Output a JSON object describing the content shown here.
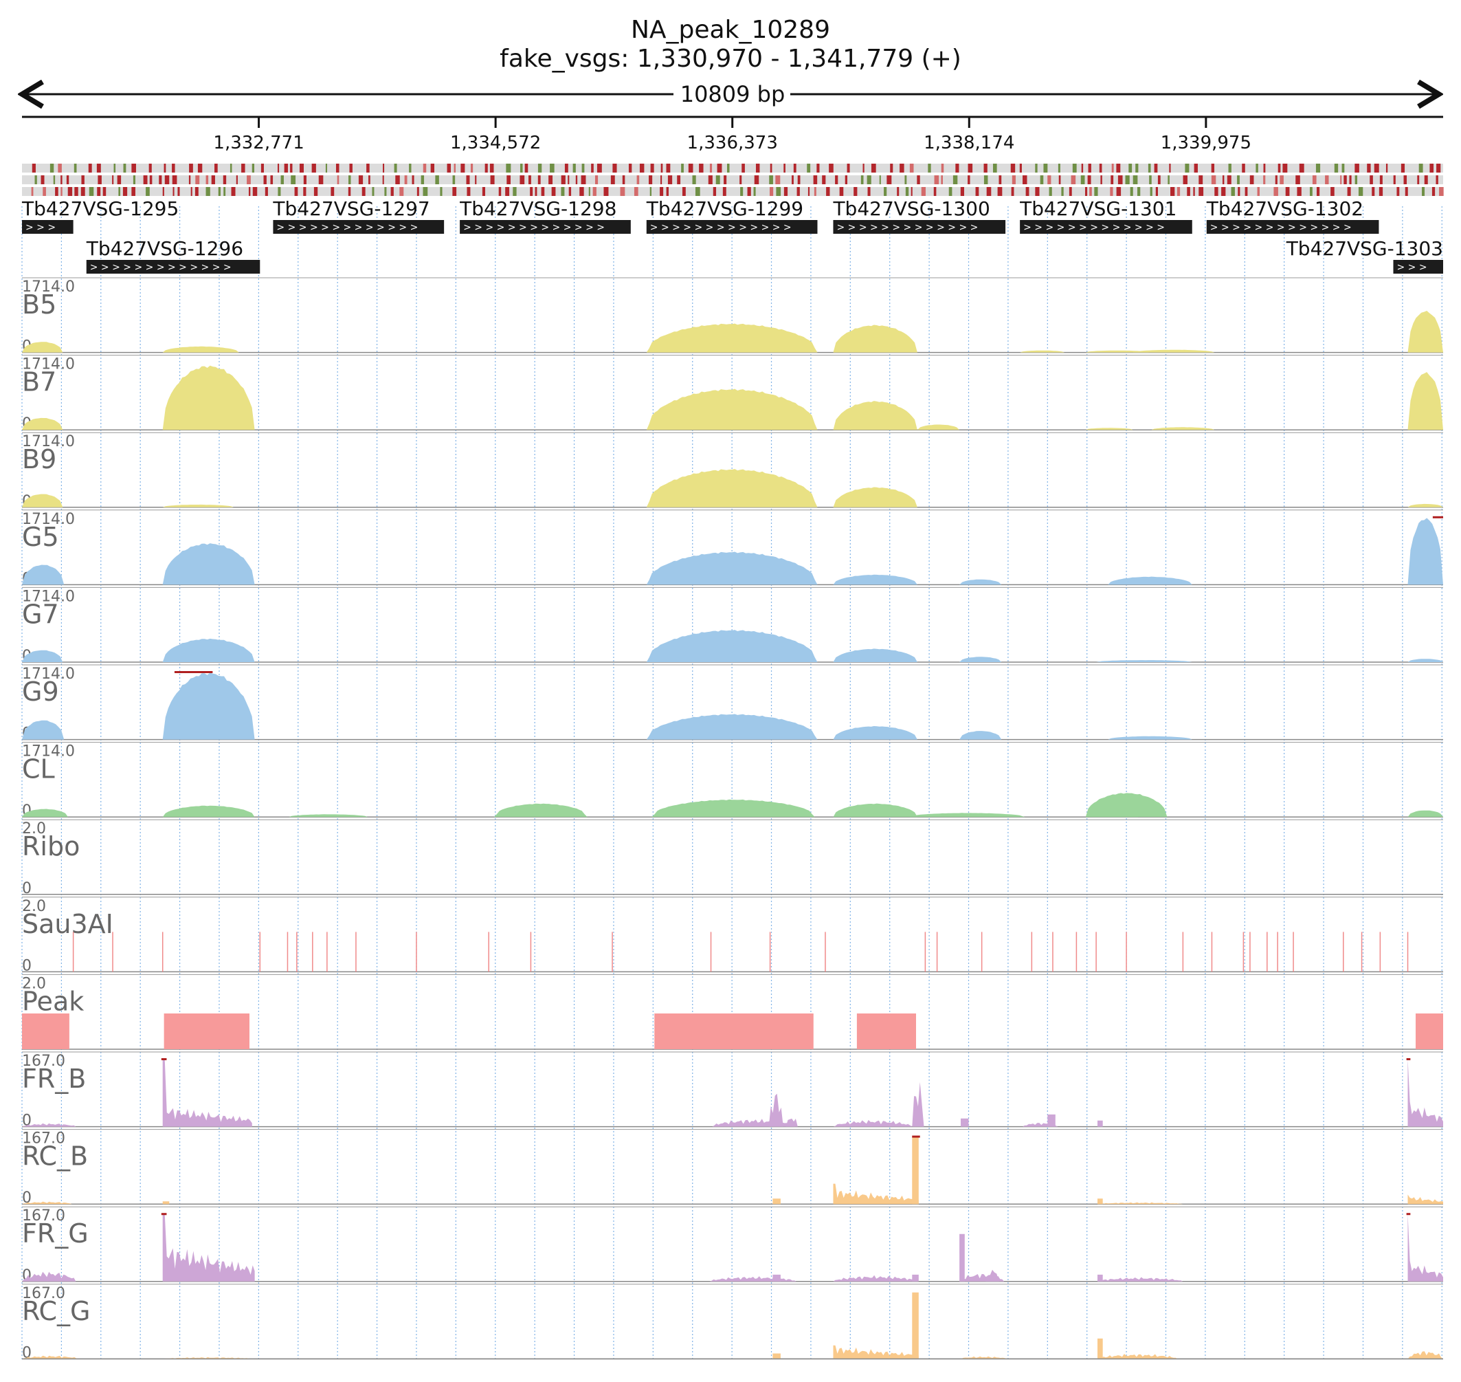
{
  "header": {
    "title": "NA_peak_10289",
    "subtitle": "fake_vsgs: 1,330,970 - 1,341,779 (+)",
    "span_label": "10809 bp"
  },
  "colors": {
    "yellow": "#e9e184",
    "blue": "#9fc8e9",
    "green": "#9bd59a",
    "pink": "#f79a9a",
    "purple": "#cda6d6",
    "orange": "#f9c98a",
    "gene_bar": "#1c1c1c",
    "grid": "#7fb2e6",
    "max_marker": "#b02020"
  },
  "chart_data": {
    "type": "area",
    "x_range": [
      1330970,
      1341779
    ],
    "x_ticks": [
      {
        "value": 1332771,
        "label": "1,332,771"
      },
      {
        "value": 1334572,
        "label": "1,334,572"
      },
      {
        "value": 1336373,
        "label": "1,336,373"
      },
      {
        "value": 1338174,
        "label": "1,338,174"
      },
      {
        "value": 1339975,
        "label": "1,339,975"
      }
    ],
    "sequence_tracks": 3,
    "genes": [
      {
        "name": "Tb427VSG-1295",
        "start": 1330970,
        "end": 1331360,
        "row": 0
      },
      {
        "name": "Tb427VSG-1296",
        "start": 1331460,
        "end": 1332780,
        "row": 1
      },
      {
        "name": "Tb427VSG-1297",
        "start": 1332880,
        "end": 1334180,
        "row": 0
      },
      {
        "name": "Tb427VSG-1298",
        "start": 1334300,
        "end": 1335600,
        "row": 0
      },
      {
        "name": "Tb427VSG-1299",
        "start": 1335720,
        "end": 1337020,
        "row": 0
      },
      {
        "name": "Tb427VSG-1300",
        "start": 1337140,
        "end": 1338450,
        "row": 0
      },
      {
        "name": "Tb427VSG-1301",
        "start": 1338560,
        "end": 1339870,
        "row": 0
      },
      {
        "name": "Tb427VSG-1302",
        "start": 1339980,
        "end": 1341290,
        "row": 0
      },
      {
        "name": "Tb427VSG-1303",
        "start": 1341400,
        "end": 1341779,
        "row": 1
      }
    ],
    "tracks": [
      {
        "name": "B5",
        "ymax": "1714.0",
        "ymin": "0",
        "color": "yellow",
        "kind": "area",
        "peaks": [
          [
            1330970,
            1331280,
            0.16
          ],
          [
            1332040,
            1332620,
            0.09
          ],
          [
            1335720,
            1337020,
            0.43
          ],
          [
            1337140,
            1337780,
            0.41
          ],
          [
            1338560,
            1338900,
            0.03
          ],
          [
            1339060,
            1339540,
            0.03
          ],
          [
            1339420,
            1340040,
            0.04
          ],
          [
            1341510,
            1341779,
            0.62
          ]
        ]
      },
      {
        "name": "B7",
        "ymax": "1714.0",
        "ymin": "0",
        "color": "yellow",
        "kind": "area",
        "peaks": [
          [
            1330970,
            1331280,
            0.18
          ],
          [
            1332040,
            1332740,
            0.96
          ],
          [
            1335720,
            1337020,
            0.61
          ],
          [
            1337140,
            1337780,
            0.43
          ],
          [
            1337780,
            1338100,
            0.08
          ],
          [
            1339060,
            1339420,
            0.03
          ],
          [
            1339560,
            1340040,
            0.04
          ],
          [
            1341510,
            1341779,
            0.86
          ]
        ]
      },
      {
        "name": "B9",
        "ymax": "1714.0",
        "ymin": "0",
        "color": "yellow",
        "kind": "area",
        "peaks": [
          [
            1330970,
            1331280,
            0.2
          ],
          [
            1332040,
            1332580,
            0.04
          ],
          [
            1335720,
            1337020,
            0.57
          ],
          [
            1337140,
            1337780,
            0.3
          ],
          [
            1341510,
            1341779,
            0.05
          ]
        ]
      },
      {
        "name": "G5",
        "ymax": "1714.0",
        "ymin": "0",
        "color": "blue",
        "kind": "area",
        "clipped": [
          [
            1341700,
            1341779
          ]
        ],
        "peaks": [
          [
            1330970,
            1331290,
            0.3
          ],
          [
            1332040,
            1332740,
            0.62
          ],
          [
            1335720,
            1337020,
            0.49
          ],
          [
            1337140,
            1337780,
            0.15
          ],
          [
            1338100,
            1338420,
            0.08
          ],
          [
            1339230,
            1339870,
            0.12
          ],
          [
            1341510,
            1341779,
            1.0
          ]
        ]
      },
      {
        "name": "G7",
        "ymax": "1714.0",
        "ymin": "0",
        "color": "blue",
        "kind": "area",
        "peaks": [
          [
            1330970,
            1331280,
            0.18
          ],
          [
            1332040,
            1332740,
            0.35
          ],
          [
            1335720,
            1337020,
            0.48
          ],
          [
            1337140,
            1337780,
            0.2
          ],
          [
            1338100,
            1338420,
            0.08
          ],
          [
            1339140,
            1339870,
            0.03
          ],
          [
            1341510,
            1341779,
            0.05
          ]
        ]
      },
      {
        "name": "G9",
        "ymax": "1714.0",
        "ymin": "0",
        "color": "blue",
        "kind": "area",
        "clipped": [
          [
            1332130,
            1332420
          ]
        ],
        "peaks": [
          [
            1330970,
            1331290,
            0.29
          ],
          [
            1332040,
            1332740,
            1.0
          ],
          [
            1335720,
            1337020,
            0.38
          ],
          [
            1337140,
            1337780,
            0.2
          ],
          [
            1338100,
            1338420,
            0.13
          ],
          [
            1339230,
            1339870,
            0.05
          ]
        ]
      },
      {
        "name": "CL",
        "ymax": "1714.0",
        "ymin": "0",
        "color": "green",
        "kind": "area",
        "peaks": [
          [
            1330970,
            1331320,
            0.12
          ],
          [
            1332040,
            1332740,
            0.17
          ],
          [
            1333000,
            1333600,
            0.04
          ],
          [
            1334560,
            1335270,
            0.2
          ],
          [
            1335760,
            1337000,
            0.26
          ],
          [
            1337140,
            1337780,
            0.2
          ],
          [
            1337720,
            1338600,
            0.06
          ],
          [
            1339060,
            1339460,
            0.04
          ],
          [
            1339060,
            1339680,
            0.36
          ],
          [
            1341510,
            1341779,
            0.1
          ]
        ]
      },
      {
        "name": "Ribo",
        "ymax": "2.0",
        "ymin": "0",
        "color": "pink",
        "kind": "empty",
        "peaks": []
      },
      {
        "name": "Sau3AI",
        "ymax": "2.0",
        "ymin": "0",
        "color": "pink",
        "kind": "sites",
        "sites": [
          1331360,
          1331660,
          1332040,
          1332780,
          1332990,
          1333060,
          1333180,
          1333290,
          1333510,
          1333970,
          1334520,
          1334840,
          1335460,
          1336210,
          1336660,
          1337080,
          1337840,
          1337930,
          1338270,
          1338650,
          1338810,
          1338990,
          1339140,
          1339370,
          1339800,
          1340020,
          1340260,
          1340310,
          1340440,
          1340520,
          1340640,
          1341020,
          1341160,
          1341300,
          1341510
        ]
      },
      {
        "name": "Peak",
        "ymax": "2.0",
        "ymin": "0",
        "color": "pink",
        "kind": "blocks",
        "blocks": [
          [
            1330970,
            1331330
          ],
          [
            1332050,
            1332700
          ],
          [
            1335780,
            1336990
          ],
          [
            1337320,
            1337770
          ],
          [
            1341570,
            1341779
          ]
        ]
      },
      {
        "name": "FR_B",
        "ymax": "167.0",
        "ymin": "0",
        "color": "purple",
        "kind": "spiky",
        "clipped": [
          [
            1332030,
            1332070
          ],
          [
            1341500,
            1341530
          ]
        ],
        "spikes": [
          [
            1330970,
            1331380,
            0.04,
            0
          ],
          [
            1332040,
            1332720,
            0.25,
            1.0
          ],
          [
            1336220,
            1336850,
            0.09,
            0.0
          ],
          [
            1336650,
            1336760,
            0.43,
            0.43
          ],
          [
            1336780,
            1336870,
            0.13,
            0.13
          ],
          [
            1337140,
            1337740,
            0.08,
            0.0
          ],
          [
            1337740,
            1337830,
            0.55,
            0.55
          ],
          [
            1338110,
            1338170,
            0.12,
            0.12
          ],
          [
            1338580,
            1338850,
            0.05,
            0.0
          ],
          [
            1338770,
            1338830,
            0.18,
            0.18
          ],
          [
            1339150,
            1339190,
            0.09,
            0.09
          ],
          [
            1341510,
            1341779,
            0.3,
            1.0
          ]
        ]
      },
      {
        "name": "RC_B",
        "ymax": "167.0",
        "ymin": "0",
        "color": "orange",
        "kind": "spiky",
        "clipped": [
          [
            1337740,
            1337800
          ]
        ],
        "spikes": [
          [
            1330970,
            1331350,
            0.03,
            0
          ],
          [
            1332040,
            1332090,
            0.04,
            0.04
          ],
          [
            1336680,
            1336740,
            0.08,
            0.08
          ],
          [
            1337140,
            1337790,
            0.18,
            0.3
          ],
          [
            1337740,
            1337790,
            1.0,
            1.0
          ],
          [
            1339150,
            1339190,
            0.08,
            0.08
          ],
          [
            1339150,
            1339800,
            0.02,
            0
          ],
          [
            1341510,
            1341779,
            0.1,
            0.14
          ]
        ]
      },
      {
        "name": "FR_G",
        "ymax": "167.0",
        "ymin": "0",
        "color": "purple",
        "kind": "spiky",
        "clipped": [
          [
            1332030,
            1332070
          ],
          [
            1341500,
            1341530
          ]
        ],
        "spikes": [
          [
            1330970,
            1331380,
            0.12,
            0
          ],
          [
            1332040,
            1332740,
            0.45,
            1.0
          ],
          [
            1336200,
            1336860,
            0.06,
            0
          ],
          [
            1336680,
            1336740,
            0.1,
            0.1
          ],
          [
            1337140,
            1337780,
            0.07,
            0
          ],
          [
            1337740,
            1337790,
            0.1,
            0.1
          ],
          [
            1338100,
            1338440,
            0.1,
            0
          ],
          [
            1338100,
            1338140,
            0.7,
            0.7
          ],
          [
            1338300,
            1338400,
            0.16,
            0.16
          ],
          [
            1339150,
            1339190,
            0.1,
            0.1
          ],
          [
            1339150,
            1339800,
            0.05,
            0
          ],
          [
            1341510,
            1341779,
            0.25,
            1.0
          ]
        ]
      },
      {
        "name": "RC_G",
        "ymax": "167.0",
        "ymin": "0",
        "color": "orange",
        "kind": "spiky",
        "spikes": [
          [
            1330970,
            1331400,
            0.04,
            0
          ],
          [
            1332040,
            1332740,
            0.02,
            0
          ],
          [
            1336680,
            1336740,
            0.08,
            0.08
          ],
          [
            1337140,
            1337790,
            0.15,
            0.2
          ],
          [
            1337740,
            1337790,
            0.98,
            0.98
          ],
          [
            1338100,
            1338460,
            0.03,
            0
          ],
          [
            1339150,
            1339190,
            0.3,
            0.3
          ],
          [
            1339150,
            1339760,
            0.06,
            0
          ],
          [
            1341510,
            1341779,
            0.1,
            0.1
          ]
        ]
      }
    ]
  }
}
